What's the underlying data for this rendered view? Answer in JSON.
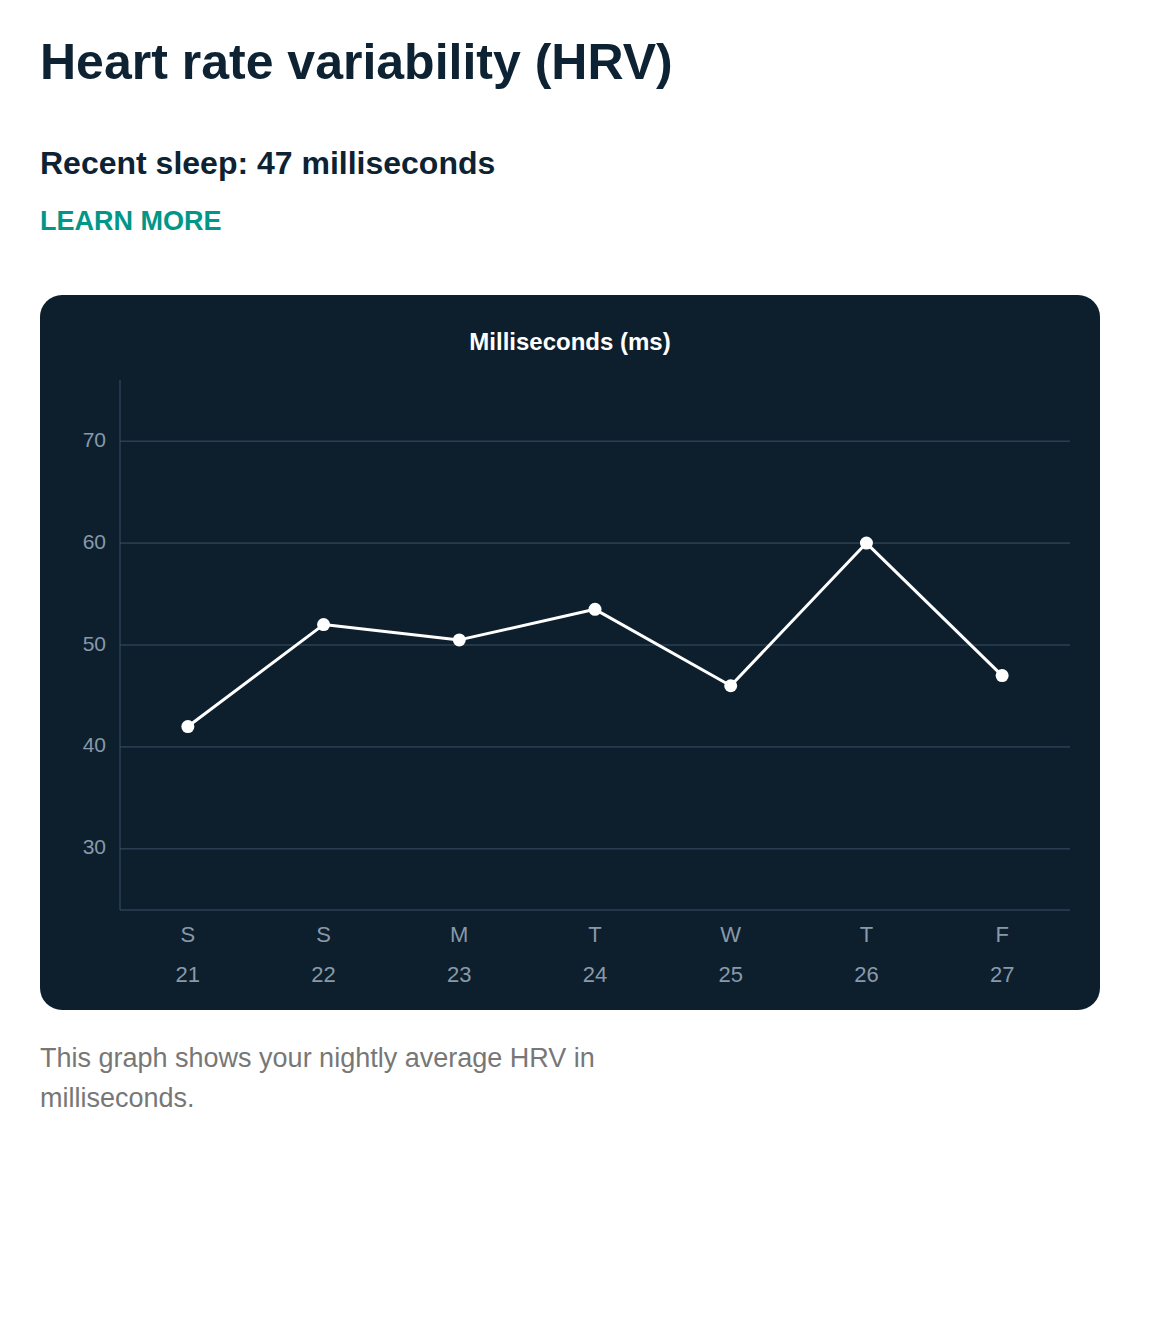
{
  "chart_data": {
    "type": "line",
    "title": "Heart rate variability (HRV)",
    "subtitle": "Recent sleep: 47 milliseconds",
    "y_label": "Milliseconds (ms)",
    "annotations": [
      "LEARN MORE",
      "This graph shows your nightly average HRV in",
      "milliseconds."
    ],
    "categories": [
      "S\n21",
      "S\n22",
      "M\n23",
      "T\n24",
      "W\n25",
      "T\n26",
      "F\n27"
    ],
    "values": [
      42,
      52,
      50.5,
      53.5,
      46,
      60,
      47
    ],
    "color": "#ffffff",
    "marker": "circle",
    "ylim": [
      24,
      76
    ],
    "yticks": [
      30,
      40,
      50,
      60,
      70
    ],
    "grid": true
  }
}
